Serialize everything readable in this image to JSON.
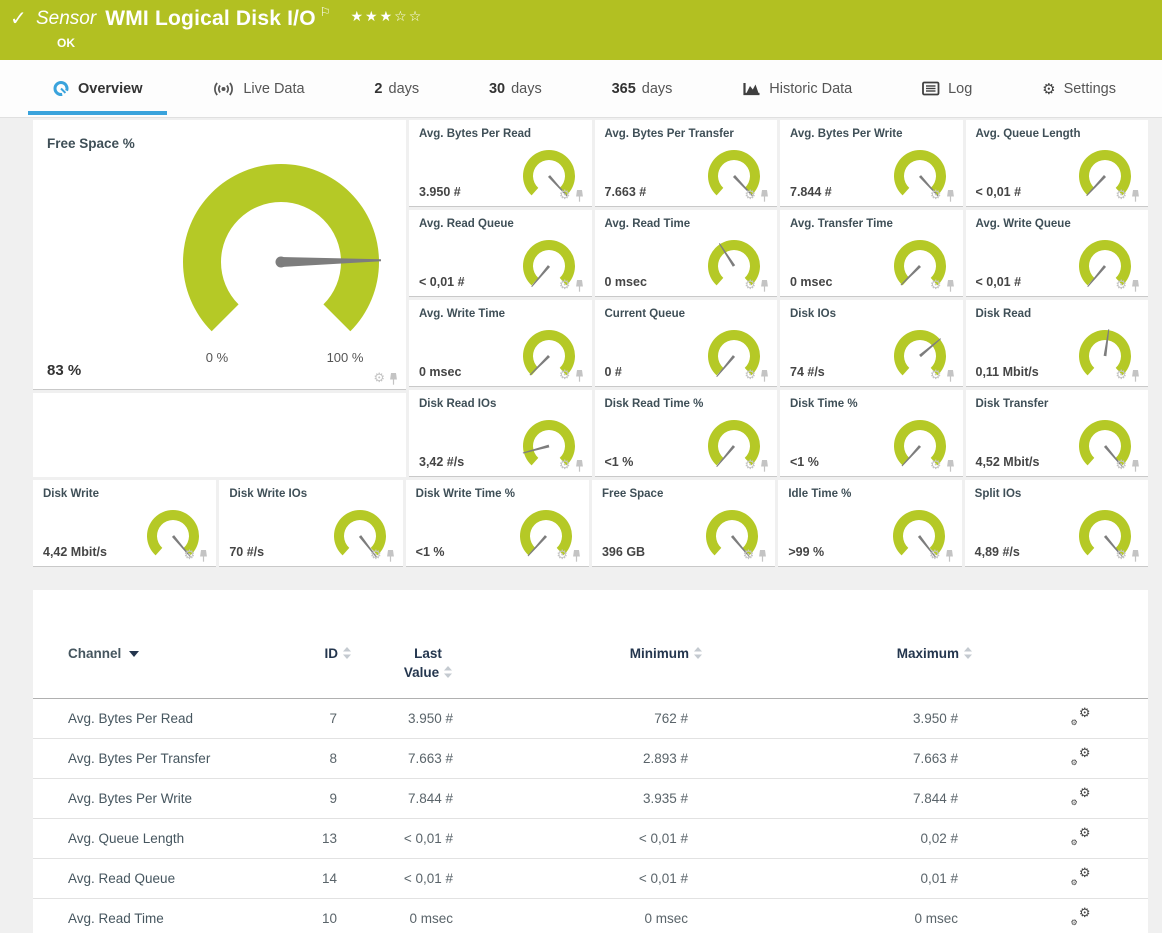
{
  "header": {
    "kind_label": "Sensor",
    "title": "WMI Logical Disk I/O",
    "status": "OK",
    "rating": {
      "value": 3,
      "max": 5,
      "stars_filled": "★★★",
      "stars_empty": "☆☆"
    }
  },
  "icons": {
    "check": "✓",
    "flag": "⚐",
    "gear": "⚙"
  },
  "tabs": [
    {
      "label": "Overview",
      "icon": "gauge-icon",
      "active": true
    },
    {
      "label": "Live Data",
      "icon": "broadcast-icon"
    },
    {
      "num": "2",
      "unit": "days"
    },
    {
      "num": "30",
      "unit": "days"
    },
    {
      "num": "365",
      "unit": "days"
    },
    {
      "label": "Historic Data",
      "icon": "chart-icon"
    },
    {
      "label": "Log",
      "icon": "log-icon"
    },
    {
      "label": "Settings",
      "icon": "gear-icon"
    }
  ],
  "dashboard": {
    "main_gauge": {
      "title": "Free Space %",
      "value": "83 %",
      "min_label": "0 %",
      "max_label": "100 %",
      "needle_deg": 89
    },
    "panels": [
      {
        "title": "Avg. Bytes Per Read",
        "value": "3.950 #",
        "needle_deg": 138
      },
      {
        "title": "Avg. Bytes Per Transfer",
        "value": "7.663 #",
        "needle_deg": 137
      },
      {
        "title": "Avg. Bytes Per Write",
        "value": "7.844 #",
        "needle_deg": 138
      },
      {
        "title": "Avg. Queue Length",
        "value": "< 0,01 #",
        "needle_deg": -137
      },
      {
        "title": "Avg. Read Queue",
        "value": "< 0,01 #",
        "needle_deg": -140
      },
      {
        "title": "Avg. Read Time",
        "value": "0 msec",
        "needle_deg": -33
      },
      {
        "title": "Avg. Transfer Time",
        "value": "0 msec",
        "needle_deg": -135
      },
      {
        "title": "Avg. Write Queue",
        "value": "< 0,01 #",
        "needle_deg": -140
      },
      {
        "title": "Avg. Write Time",
        "value": "0 msec",
        "needle_deg": -135
      },
      {
        "title": "Current Queue",
        "value": "0 #",
        "needle_deg": -140
      },
      {
        "title": "Disk IOs",
        "value": "74 #/s",
        "needle_deg": 50
      },
      {
        "title": "Disk Read",
        "value": "0,11 Mbit/s",
        "needle_deg": 8
      },
      {
        "title": "Disk Read IOs",
        "value": "3,42 #/s",
        "needle_deg": -105
      },
      {
        "title": "Disk Read Time %",
        "value": "<1 %",
        "needle_deg": -140
      },
      {
        "title": "Disk Time %",
        "value": "<1 %",
        "needle_deg": -138
      },
      {
        "title": "Disk Transfer",
        "value": "4,52 Mbit/s",
        "needle_deg": 140
      },
      {
        "title": "Disk Write",
        "value": "4,42 Mbit/s",
        "needle_deg": 140
      },
      {
        "title": "Disk Write IOs",
        "value": "70 #/s",
        "needle_deg": 142
      },
      {
        "title": "Disk Write Time %",
        "value": "<1 %",
        "needle_deg": -138
      },
      {
        "title": "Free Space",
        "value": "396 GB",
        "needle_deg": 140
      },
      {
        "title": "Idle Time %",
        "value": ">99 %",
        "needle_deg": 142
      },
      {
        "title": "Split IOs",
        "value": "4,89 #/s",
        "needle_deg": 140
      }
    ]
  },
  "table": {
    "headers": {
      "channel": "Channel",
      "id": "ID",
      "last_line1": "Last",
      "last_line2": "Value",
      "minimum": "Minimum",
      "maximum": "Maximum"
    },
    "sorted_by": "Channel",
    "rows": [
      {
        "channel": "Avg. Bytes Per Read",
        "id": "7",
        "last": "3.950 #",
        "min": "762 #",
        "max": "3.950 #"
      },
      {
        "channel": "Avg. Bytes Per Transfer",
        "id": "8",
        "last": "7.663 #",
        "min": "2.893 #",
        "max": "7.663 #"
      },
      {
        "channel": "Avg. Bytes Per Write",
        "id": "9",
        "last": "7.844 #",
        "min": "3.935 #",
        "max": "7.844 #"
      },
      {
        "channel": "Avg. Queue Length",
        "id": "13",
        "last": "< 0,01 #",
        "min": "< 0,01 #",
        "max": "0,02 #"
      },
      {
        "channel": "Avg. Read Queue",
        "id": "14",
        "last": "< 0,01 #",
        "min": "< 0,01 #",
        "max": "0,01 #"
      },
      {
        "channel": "Avg. Read Time",
        "id": "10",
        "last": "0 msec",
        "min": "0 msec",
        "max": "0 msec"
      }
    ]
  },
  "colors": {
    "banner_green": "#b2c022",
    "gauge_green": "#b5c926",
    "needle_gray": "#7d7d7d",
    "accent_blue": "#3aa3dc",
    "header_navy": "#24364e",
    "page_bg": "#f0f0f0"
  }
}
